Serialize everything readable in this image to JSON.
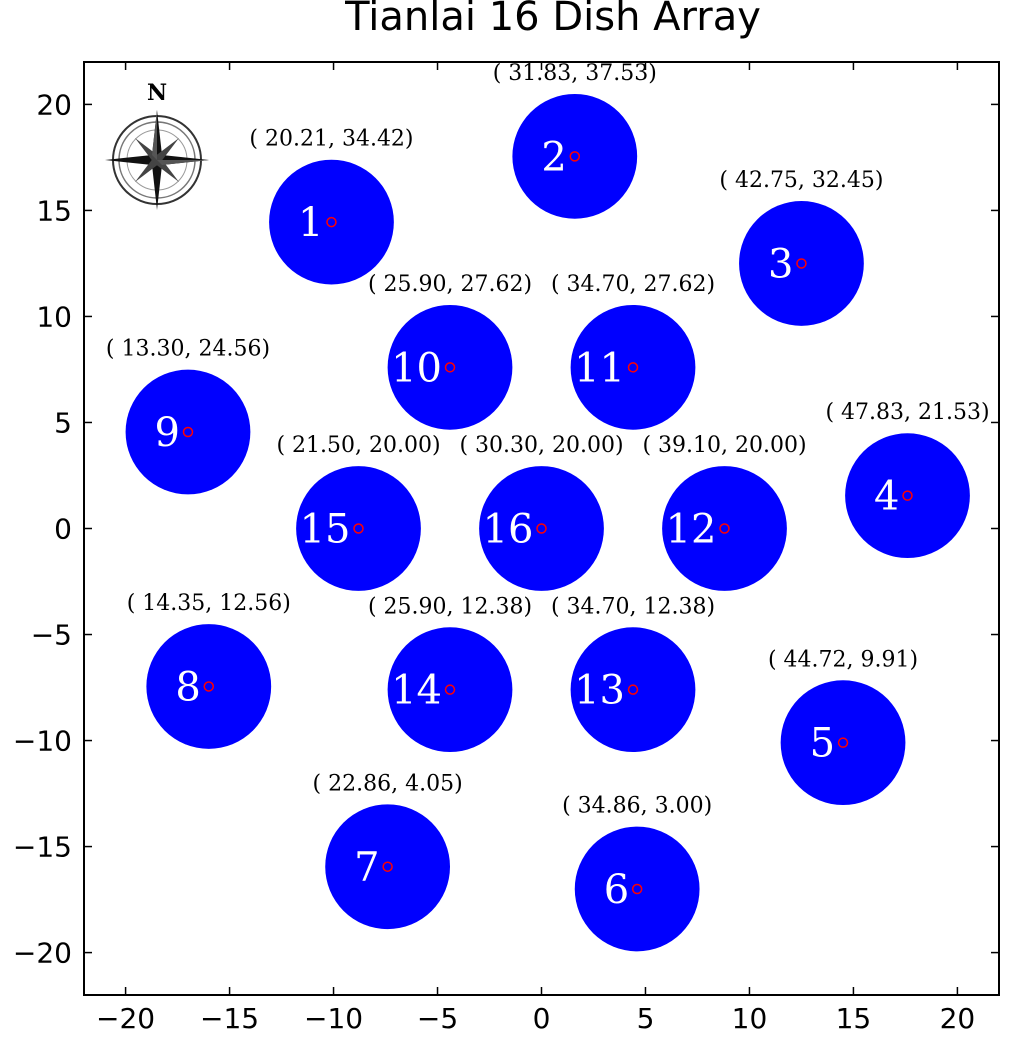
{
  "chart_data": {
    "type": "scatter",
    "title": "Tianlai 16 Dish Array",
    "xlabel": "",
    "ylabel": "",
    "xlim": [
      -22,
      22
    ],
    "ylim": [
      -22,
      22
    ],
    "xticks": [
      -20,
      -15,
      -10,
      -5,
      0,
      5,
      10,
      15,
      20
    ],
    "yticks": [
      -20,
      -15,
      -10,
      -5,
      0,
      5,
      10,
      15,
      20
    ],
    "xtick_labels": [
      "−20",
      "−15",
      "−10",
      "−5",
      "0",
      "5",
      "10",
      "15",
      "20"
    ],
    "ytick_labels": [
      "−20",
      "−15",
      "−10",
      "−5",
      "0",
      "5",
      "10",
      "15",
      "20"
    ],
    "grid": false,
    "dish_diameter": 6,
    "dish_color": "#0000ff",
    "center_marker_color": "#ff0000",
    "dish_label_color": "#ffffff",
    "compass_label": "N",
    "dishes": [
      {
        "id": "1",
        "x": -10.1,
        "y": 14.45,
        "label": "( 20.21, 34.42)"
      },
      {
        "id": "2",
        "x": 1.6,
        "y": 17.55,
        "label": "( 31.83, 37.53)"
      },
      {
        "id": "3",
        "x": 12.5,
        "y": 12.5,
        "label": "( 42.75, 32.45)"
      },
      {
        "id": "4",
        "x": 17.6,
        "y": 1.55,
        "label": "( 47.83, 21.53)"
      },
      {
        "id": "5",
        "x": 14.5,
        "y": -10.1,
        "label": "( 44.72, 9.91)"
      },
      {
        "id": "6",
        "x": 4.6,
        "y": -17.0,
        "label": "( 34.86, 3.00)"
      },
      {
        "id": "7",
        "x": -7.4,
        "y": -15.95,
        "label": "( 22.86, 4.05)"
      },
      {
        "id": "8",
        "x": -16.0,
        "y": -7.45,
        "label": "( 14.35, 12.56)"
      },
      {
        "id": "9",
        "x": -17.0,
        "y": 4.55,
        "label": "( 13.30, 24.56)"
      },
      {
        "id": "10",
        "x": -4.4,
        "y": 7.6,
        "label": "( 25.90, 27.62)"
      },
      {
        "id": "11",
        "x": 4.4,
        "y": 7.6,
        "label": "( 34.70, 27.62)"
      },
      {
        "id": "12",
        "x": 8.8,
        "y": 0.0,
        "label": "( 39.10, 20.00)"
      },
      {
        "id": "13",
        "x": 4.4,
        "y": -7.6,
        "label": "( 34.70, 12.38)"
      },
      {
        "id": "14",
        "x": -4.4,
        "y": -7.6,
        "label": "( 25.90, 12.38)"
      },
      {
        "id": "15",
        "x": -8.8,
        "y": 0.0,
        "label": "( 21.50, 20.00)"
      },
      {
        "id": "16",
        "x": 0.0,
        "y": 0.0,
        "label": "( 30.30, 20.00)"
      }
    ]
  }
}
